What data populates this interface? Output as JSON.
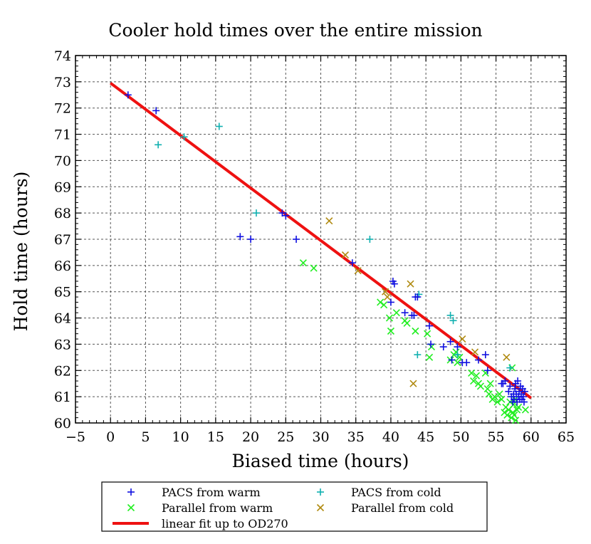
{
  "chart_data": {
    "type": "scatter",
    "title": "Cooler hold times over the entire mission",
    "xlabel": "Biased time (hours)",
    "ylabel": "Hold time (hours)",
    "xlim": [
      -5,
      65
    ],
    "ylim": [
      60,
      74
    ],
    "xticks": [
      -5,
      0,
      5,
      10,
      15,
      20,
      25,
      30,
      35,
      40,
      45,
      50,
      55,
      60,
      65
    ],
    "yticks": [
      60,
      61,
      62,
      63,
      64,
      65,
      66,
      67,
      68,
      69,
      70,
      71,
      72,
      73,
      74
    ],
    "grid": true,
    "legend_position": "bottom-center",
    "series": [
      {
        "name": "PACS from warm",
        "marker": "plus",
        "color": "#1010e0",
        "points": [
          [
            2.5,
            72.5
          ],
          [
            6.5,
            71.9
          ],
          [
            18.5,
            67.1
          ],
          [
            20,
            67.0
          ],
          [
            24.5,
            68.0
          ],
          [
            25,
            67.9
          ],
          [
            26.5,
            67.0
          ],
          [
            34.5,
            66.1
          ],
          [
            40,
            64.6
          ],
          [
            40.3,
            65.4
          ],
          [
            40.5,
            65.3
          ],
          [
            42,
            64.2
          ],
          [
            43,
            64.1
          ],
          [
            43.3,
            64.1
          ],
          [
            43.5,
            64.8
          ],
          [
            43.8,
            64.8
          ],
          [
            45.5,
            63.7
          ],
          [
            45.7,
            63.0
          ],
          [
            47.5,
            62.9
          ],
          [
            48.5,
            63.1
          ],
          [
            48.7,
            62.4
          ],
          [
            49.5,
            62.9
          ],
          [
            50.2,
            62.3
          ],
          [
            50.8,
            62.3
          ],
          [
            52.5,
            62.4
          ],
          [
            53.5,
            62.6
          ],
          [
            53.8,
            62.0
          ],
          [
            55.8,
            61.5
          ],
          [
            56,
            61.5
          ],
          [
            56.3,
            61.6
          ],
          [
            56.8,
            61.2
          ],
          [
            57,
            61.4
          ],
          [
            57.2,
            61.0
          ],
          [
            57.4,
            60.8
          ],
          [
            57.5,
            61.1
          ],
          [
            57.6,
            60.9
          ],
          [
            57.7,
            61.3
          ],
          [
            57.8,
            61.5
          ],
          [
            57.9,
            61.1
          ],
          [
            58,
            60.8
          ],
          [
            58.1,
            61.6
          ],
          [
            58.2,
            61.0
          ],
          [
            58.3,
            61.2
          ],
          [
            58.4,
            60.9
          ],
          [
            58.5,
            61.4
          ],
          [
            58.6,
            61.1
          ],
          [
            58.7,
            60.9
          ],
          [
            58.8,
            61.3
          ],
          [
            58.9,
            61.0
          ],
          [
            59,
            60.8
          ],
          [
            59.1,
            61.2
          ]
        ]
      },
      {
        "name": "PACS from cold",
        "marker": "plus",
        "color": "#10b0b0",
        "points": [
          [
            6.8,
            70.6
          ],
          [
            10.5,
            70.9
          ],
          [
            15.5,
            71.3
          ],
          [
            20.8,
            68.0
          ],
          [
            37,
            67.0
          ],
          [
            43.8,
            62.6
          ],
          [
            44,
            64.9
          ],
          [
            48.5,
            64.1
          ],
          [
            48.9,
            63.9
          ],
          [
            49.5,
            62.6
          ],
          [
            57,
            62.1
          ]
        ]
      },
      {
        "name": "Parallel from warm",
        "marker": "cross",
        "color": "#22ee22",
        "points": [
          [
            27.5,
            66.1
          ],
          [
            29,
            65.9
          ],
          [
            38.5,
            64.6
          ],
          [
            39,
            64.5
          ],
          [
            39.8,
            64.0
          ],
          [
            40,
            63.5
          ],
          [
            40.8,
            64.2
          ],
          [
            42,
            63.9
          ],
          [
            42.3,
            63.8
          ],
          [
            43.5,
            63.5
          ],
          [
            45.2,
            63.4
          ],
          [
            45.5,
            62.5
          ],
          [
            45.8,
            62.9
          ],
          [
            48.5,
            62.4
          ],
          [
            49,
            62.6
          ],
          [
            49.3,
            62.7
          ],
          [
            49.5,
            62.3
          ],
          [
            49.8,
            62.5
          ],
          [
            51.5,
            61.9
          ],
          [
            51.8,
            61.6
          ],
          [
            52.2,
            61.8
          ],
          [
            52.5,
            61.5
          ],
          [
            52.8,
            61.4
          ],
          [
            53.5,
            61.9
          ],
          [
            53.8,
            61.3
          ],
          [
            54,
            61.1
          ],
          [
            54.2,
            61.5
          ],
          [
            54.5,
            60.9
          ],
          [
            54.8,
            61.0
          ],
          [
            55.2,
            60.8
          ],
          [
            55.5,
            61.1
          ],
          [
            55.8,
            60.9
          ],
          [
            56.2,
            60.4
          ],
          [
            56.4,
            60.6
          ],
          [
            56.6,
            60.3
          ],
          [
            56.8,
            60.5
          ],
          [
            57,
            60.8
          ],
          [
            57.2,
            60.2
          ],
          [
            57.3,
            62.1
          ],
          [
            57.4,
            60.4
          ],
          [
            57.5,
            60.7
          ],
          [
            57.6,
            60.3
          ],
          [
            57.7,
            60.9
          ],
          [
            57.8,
            60.1
          ],
          [
            58,
            60.5
          ],
          [
            58.2,
            60.6
          ],
          [
            59.2,
            60.5
          ]
        ]
      },
      {
        "name": "Parallel from cold",
        "marker": "cross",
        "color": "#b08a10",
        "points": [
          [
            31.2,
            67.7
          ],
          [
            33.5,
            66.4
          ],
          [
            35.3,
            65.8
          ],
          [
            39.2,
            65.0
          ],
          [
            39.5,
            64.8
          ],
          [
            42.8,
            65.3
          ],
          [
            43.2,
            61.5
          ],
          [
            50.2,
            63.2
          ],
          [
            52,
            62.7
          ],
          [
            56.5,
            62.5
          ]
        ]
      }
    ],
    "fit_line": {
      "name": "linear fit up to OD270",
      "color": "#ee1111",
      "x": [
        0,
        60
      ],
      "y": [
        72.95,
        60.95
      ]
    }
  }
}
